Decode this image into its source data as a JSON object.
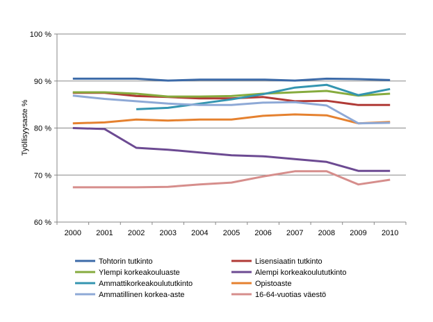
{
  "chart_data": {
    "type": "line",
    "title": "",
    "xlabel": "",
    "ylabel": "Työllisyysaste %",
    "ylim": [
      60,
      100
    ],
    "yticks": [
      "60 %",
      "70 %",
      "80 %",
      "90 %",
      "100 %"
    ],
    "ytick_values": [
      60,
      70,
      80,
      90,
      100
    ],
    "grid": "horizontal",
    "legend_position": "bottom",
    "categories": [
      "2000",
      "2001",
      "2002",
      "2003",
      "2004",
      "2005",
      "2006",
      "2007",
      "2008",
      "2009",
      "2010"
    ],
    "series": [
      {
        "name": "Tohtorin tutkinto",
        "color": "#3c6aa8",
        "values": [
          90.5,
          90.5,
          90.5,
          90.1,
          90.3,
          90.3,
          90.3,
          90.1,
          90.5,
          90.4,
          90.2
        ]
      },
      {
        "name": "Lisensiaatin tutkinto",
        "color": "#b03a36",
        "values": [
          87.5,
          87.5,
          86.8,
          86.6,
          86.3,
          86.3,
          86.6,
          85.7,
          85.8,
          84.9,
          84.9
        ]
      },
      {
        "name": "Ylempi korkeakouluaste",
        "color": "#86ab3e",
        "values": [
          87.6,
          87.6,
          87.3,
          86.7,
          86.7,
          86.8,
          87.3,
          87.6,
          87.9,
          86.9,
          87.3
        ]
      },
      {
        "name": "Alempi korkeakoulututkinto",
        "color": "#6c4a92",
        "values": [
          80.0,
          79.8,
          75.8,
          75.4,
          74.8,
          74.2,
          74.0,
          73.4,
          72.8,
          70.9,
          70.9
        ]
      },
      {
        "name": "Ammattikorkeakoulututkinto",
        "color": "#3495b0",
        "values": [
          null,
          null,
          84.0,
          84.3,
          85.2,
          86.1,
          87.2,
          88.6,
          89.2,
          87.0,
          88.3
        ]
      },
      {
        "name": "Opistoaste",
        "color": "#e5812f",
        "values": [
          81.0,
          81.2,
          81.8,
          81.6,
          81.8,
          81.8,
          82.6,
          82.9,
          82.7,
          81.0,
          81.3
        ]
      },
      {
        "name": "Ammatillinen korkea-aste",
        "color": "#8ea9d6",
        "values": [
          86.9,
          86.2,
          85.7,
          85.2,
          84.9,
          84.9,
          85.4,
          85.5,
          84.8,
          81.0,
          81.1
        ]
      },
      {
        "name": "16-64-vuotias väestö",
        "color": "#d68e8c",
        "values": [
          67.4,
          67.4,
          67.4,
          67.5,
          68.0,
          68.4,
          69.7,
          70.8,
          70.8,
          68.0,
          69.0
        ]
      }
    ]
  }
}
